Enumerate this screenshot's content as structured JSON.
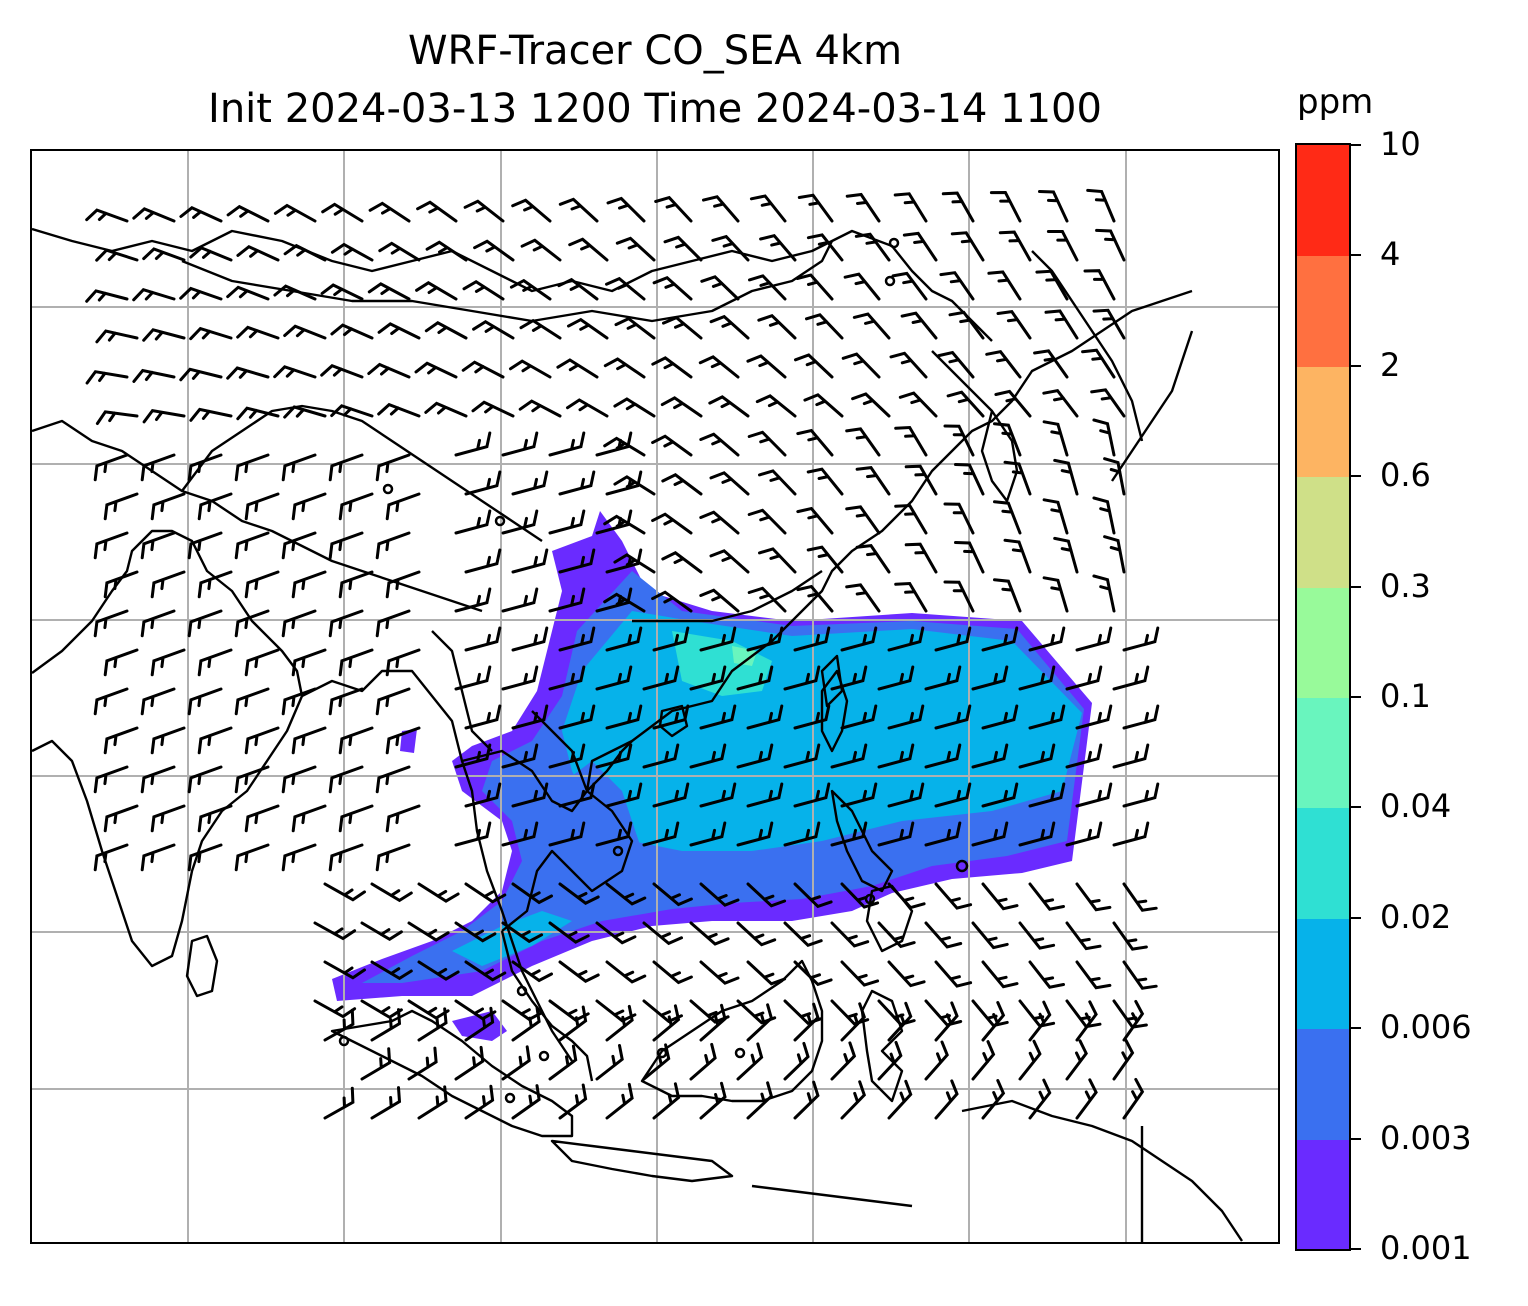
{
  "title": {
    "line1": "WRF-Tracer CO_SEA 4km",
    "line2": "Init 2024-03-13 1200 Time 2024-03-14 1100"
  },
  "map": {
    "projection": "Mercator",
    "gridlines": true,
    "coastlines": true,
    "overlay": "wind barbs",
    "field": "CO tracer concentration (shaded)"
  },
  "colorbar": {
    "unit": "ppm",
    "ticks": [
      "0.001",
      "0.003",
      "0.006",
      "0.02",
      "0.04",
      "0.1",
      "0.3",
      "0.6",
      "2",
      "4",
      "10"
    ],
    "colors": [
      "#6a2bff",
      "#3a70f0",
      "#06b2ea",
      "#2fe0d3",
      "#69f5be",
      "#98fa9a",
      "#cfe088",
      "#fdb462",
      "#ff7040",
      "#ff2a16"
    ]
  },
  "colors": {
    "frame": "#000000",
    "gridline": "#b0b0b0",
    "coastline": "#000000",
    "barb": "#000000"
  }
}
